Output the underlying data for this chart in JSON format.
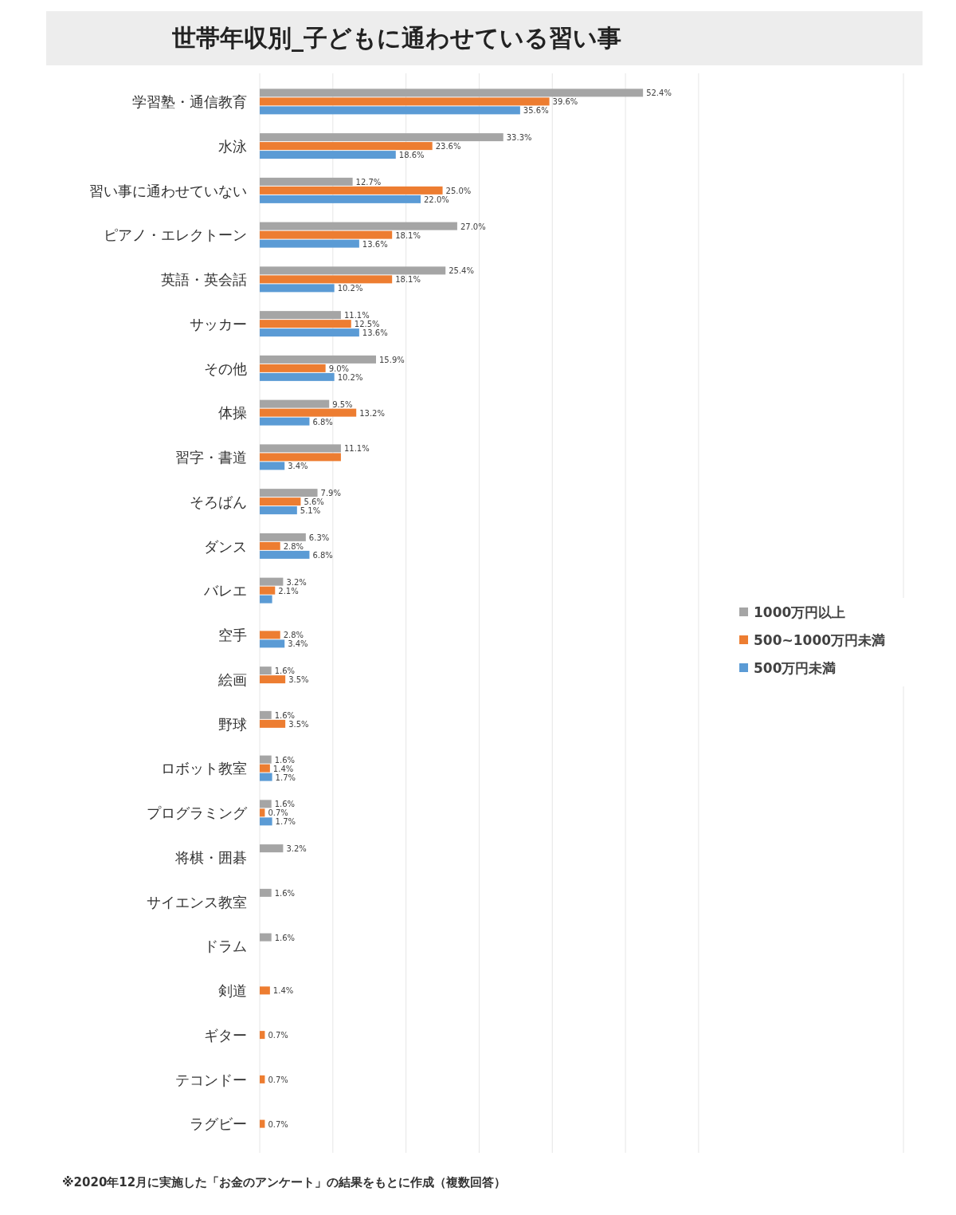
{
  "chart_data": {
    "type": "bar",
    "orientation": "horizontal",
    "title": "世帯年収別_子どもに通わせている習い事",
    "categories": [
      "学習塾・通信教育",
      "水泳",
      "習い事に通わせていない",
      "ピアノ・エレクトーン",
      "英語・英会話",
      "サッカー",
      "その他",
      "体操",
      "習字・書道",
      "そろばん",
      "ダンス",
      "バレエ",
      "空手",
      "絵画",
      "野球",
      "ロボット教室",
      "プログラミング",
      "将棋・囲碁",
      "サイエンス教室",
      "ドラム",
      "剣道",
      "ギター",
      "テコンドー",
      "ラグビー"
    ],
    "series": [
      {
        "name": "1000万円以上",
        "color": "#a5a5a5",
        "values": [
          52.4,
          33.3,
          12.7,
          27.0,
          25.4,
          11.1,
          15.9,
          9.5,
          11.1,
          7.9,
          6.3,
          3.2,
          null,
          1.6,
          1.6,
          1.6,
          1.6,
          3.2,
          1.6,
          1.6,
          null,
          null,
          null,
          null
        ],
        "value_labels": [
          "52.4%",
          "33.3%",
          "12.7%",
          "27.0%",
          "25.4%",
          "11.1%",
          "15.9%",
          "9.5%",
          "11.1%",
          "7.9%",
          "6.3%",
          "3.2%",
          null,
          "1.6%",
          "1.6%",
          "1.6%",
          "1.6%",
          "3.2%",
          "1.6%",
          "1.6%",
          null,
          null,
          null,
          null
        ]
      },
      {
        "name": "500~1000万円未満",
        "color": "#ed7d31",
        "values": [
          39.6,
          23.6,
          25.0,
          18.1,
          18.1,
          12.5,
          9.0,
          13.2,
          11.1,
          5.6,
          2.8,
          2.1,
          2.8,
          3.5,
          3.5,
          1.4,
          0.7,
          null,
          null,
          null,
          1.4,
          0.7,
          0.7,
          0.7
        ],
        "value_labels": [
          "39.6%",
          "23.6%",
          "25.0%",
          "18.1%",
          "18.1%",
          "12.5%",
          "9.0%",
          "13.2%",
          null,
          "5.6%",
          "2.8%",
          "2.1%",
          "2.8%",
          "3.5%",
          "3.5%",
          "1.4%",
          "0.7%",
          null,
          null,
          null,
          "1.4%",
          "0.7%",
          "0.7%",
          "0.7%"
        ]
      },
      {
        "name": "500万円未満",
        "color": "#5b9bd5",
        "values": [
          35.6,
          18.6,
          22.0,
          13.6,
          10.2,
          13.6,
          10.2,
          6.8,
          3.4,
          5.1,
          6.8,
          1.7,
          3.4,
          null,
          null,
          1.7,
          1.7,
          null,
          null,
          null,
          null,
          null,
          null,
          null
        ],
        "value_labels": [
          "35.6%",
          "18.6%",
          "22.0%",
          "13.6%",
          "10.2%",
          "13.6%",
          "10.2%",
          "6.8%",
          "3.4%",
          "5.1%",
          "6.8%",
          null,
          "3.4%",
          null,
          null,
          "1.7%",
          "1.7%",
          null,
          null,
          null,
          null,
          null,
          null,
          null
        ]
      }
    ],
    "xlim": [
      0,
      88
    ],
    "xticks": [
      {
        "value": 0,
        "label": null
      },
      {
        "value": 10,
        "label": null
      },
      {
        "value": 20,
        "label": null
      },
      {
        "value": 30,
        "label": null
      },
      {
        "value": 40,
        "label": null
      },
      {
        "value": 50,
        "label": null
      },
      {
        "value": 60,
        "label": null
      }
    ],
    "tick_labels": "y",
    "grid": "x",
    "legend": "right",
    "annotations": [
      "※2020年12月に実施した「お金のアンケート」の結果をもとに作成（複数回答）"
    ]
  }
}
